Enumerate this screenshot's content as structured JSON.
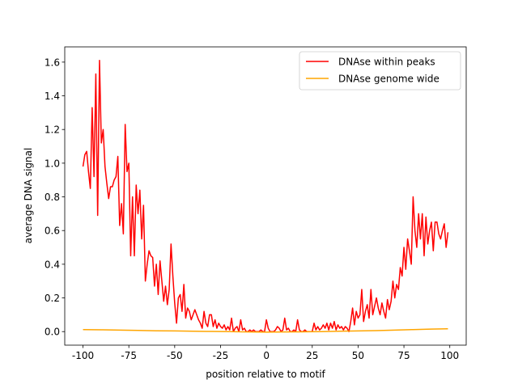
{
  "chart_data": {
    "type": "line",
    "xlabel": "position relative to motif",
    "ylabel": "average DNA signal",
    "xlim": [
      -109.95,
      108.95
    ],
    "ylim": [
      -0.0805,
      1.6905
    ],
    "xticks": [
      -100,
      -75,
      -50,
      -25,
      0,
      25,
      50,
      75,
      100
    ],
    "yticks": [
      {
        "value": 0,
        "label": "0.0"
      },
      0.2,
      0.4,
      0.6,
      0.8,
      {
        "value": 1,
        "label": "1.0"
      },
      1.2,
      1.4,
      1.6
    ],
    "legend": "upper right",
    "series": [
      {
        "name": "DNAse within peaks",
        "color": "#ff0000",
        "x": [
          -100,
          -99,
          -98,
          -97,
          -96,
          -95,
          -94,
          -93,
          -92,
          -91,
          -90,
          -89,
          -88,
          -87,
          -86,
          -85,
          -84,
          -83,
          -82,
          -81,
          -80,
          -79,
          -78,
          -77,
          -76,
          -75,
          -74,
          -73,
          -72,
          -71,
          -70,
          -69,
          -68,
          -67,
          -66,
          -65,
          -64,
          -63,
          -62,
          -61,
          -60,
          -59,
          -58,
          -57,
          -56,
          -55,
          -54,
          -53,
          -52,
          -51,
          -50,
          -49,
          -48,
          -47,
          -46,
          -45,
          -44,
          -43,
          -42,
          -41,
          -40,
          -39,
          -38,
          -37,
          -36,
          -35,
          -34,
          -33,
          -32,
          -31,
          -30,
          -29,
          -28,
          -27,
          -26,
          -25,
          -24,
          -23,
          -22,
          -21,
          -20,
          -19,
          -18,
          -17,
          -16,
          -15,
          -14,
          -13,
          -12,
          -11,
          -10,
          -9,
          -8,
          -7,
          -6,
          -5,
          -4,
          -3,
          -2,
          -1,
          0,
          1,
          2,
          3,
          4,
          5,
          6,
          7,
          8,
          9,
          10,
          11,
          12,
          13,
          14,
          15,
          16,
          17,
          18,
          19,
          20,
          21,
          22,
          23,
          24,
          25,
          26,
          27,
          28,
          29,
          30,
          31,
          32,
          33,
          34,
          35,
          36,
          37,
          38,
          39,
          40,
          41,
          42,
          43,
          44,
          45,
          46,
          47,
          48,
          49,
          50,
          51,
          52,
          53,
          54,
          55,
          56,
          57,
          58,
          59,
          60,
          61,
          62,
          63,
          64,
          65,
          66,
          67,
          68,
          69,
          70,
          71,
          72,
          73,
          74,
          75,
          76,
          77,
          78,
          79,
          80,
          81,
          82,
          83,
          84,
          85,
          86,
          87,
          88,
          89,
          90,
          91,
          92,
          93,
          94,
          95,
          96,
          97,
          98,
          99
        ],
        "values": [
          0.98,
          1.05,
          1.07,
          0.95,
          0.85,
          1.33,
          0.92,
          1.53,
          0.69,
          1.61,
          1.12,
          1.2,
          0.98,
          0.88,
          0.79,
          0.86,
          0.86,
          0.9,
          0.92,
          1.04,
          0.63,
          0.76,
          0.58,
          1.23,
          0.95,
          1.0,
          0.45,
          0.8,
          0.45,
          0.87,
          0.7,
          0.84,
          0.55,
          0.75,
          0.3,
          0.4,
          0.48,
          0.45,
          0.44,
          0.27,
          0.4,
          0.22,
          0.42,
          0.3,
          0.18,
          0.27,
          0.16,
          0.25,
          0.52,
          0.33,
          0.17,
          0.05,
          0.2,
          0.22,
          0.12,
          0.28,
          0.08,
          0.14,
          0.12,
          0.07,
          0.1,
          0.13,
          0.1,
          0.07,
          0.05,
          0.02,
          0.12,
          0.05,
          0.03,
          0.1,
          0.1,
          0.03,
          0.07,
          0.02,
          0.05,
          0.03,
          0.02,
          0.04,
          0.01,
          0.03,
          0.01,
          0.08,
          0.0,
          0.02,
          0.03,
          0.0,
          0.07,
          0.01,
          0.02,
          0.0,
          0.0,
          0.01,
          0.0,
          0.01,
          0.0,
          0.0,
          0.0,
          0.01,
          0.0,
          0.0,
          0.07,
          0.02,
          0.0,
          0.0,
          0.0,
          0.01,
          0.03,
          0.02,
          0.0,
          0.01,
          0.08,
          0.01,
          0.02,
          0.0,
          0.0,
          0.01,
          0.0,
          0.07,
          0.01,
          0.0,
          0.0,
          0.01,
          0.0,
          0.0,
          0.0,
          0.0,
          0.05,
          0.01,
          0.03,
          0.01,
          0.02,
          0.04,
          0.02,
          0.05,
          0.01,
          0.05,
          0.02,
          0.06,
          0.01,
          0.04,
          0.02,
          0.03,
          0.01,
          0.03,
          0.02,
          0.0,
          0.06,
          0.14,
          0.04,
          0.12,
          0.08,
          0.1,
          0.25,
          0.06,
          0.12,
          0.16,
          0.08,
          0.25,
          0.1,
          0.15,
          0.2,
          0.14,
          0.1,
          0.17,
          0.12,
          0.08,
          0.19,
          0.13,
          0.18,
          0.3,
          0.2,
          0.28,
          0.25,
          0.38,
          0.33,
          0.5,
          0.37,
          0.55,
          0.48,
          0.4,
          0.8,
          0.6,
          0.5,
          0.7,
          0.55,
          0.7,
          0.45,
          0.68,
          0.52,
          0.6,
          0.65,
          0.48,
          0.65,
          0.65,
          0.58,
          0.55,
          0.6,
          0.64,
          0.5,
          0.59
        ]
      },
      {
        "name": "DNAse genome wide",
        "color": "#ffa500",
        "x": [
          -100,
          -90,
          -80,
          -70,
          -60,
          -50,
          -40,
          -30,
          -20,
          -10,
          0,
          10,
          20,
          30,
          40,
          50,
          60,
          70,
          80,
          90,
          99
        ],
        "values": [
          0.012,
          0.011,
          0.009,
          0.007,
          0.005,
          0.004,
          0.002,
          0.001,
          0.0,
          -0.002,
          -0.003,
          -0.002,
          -0.001,
          0.0,
          0.002,
          0.004,
          0.006,
          0.009,
          0.012,
          0.015,
          0.017
        ]
      }
    ]
  }
}
